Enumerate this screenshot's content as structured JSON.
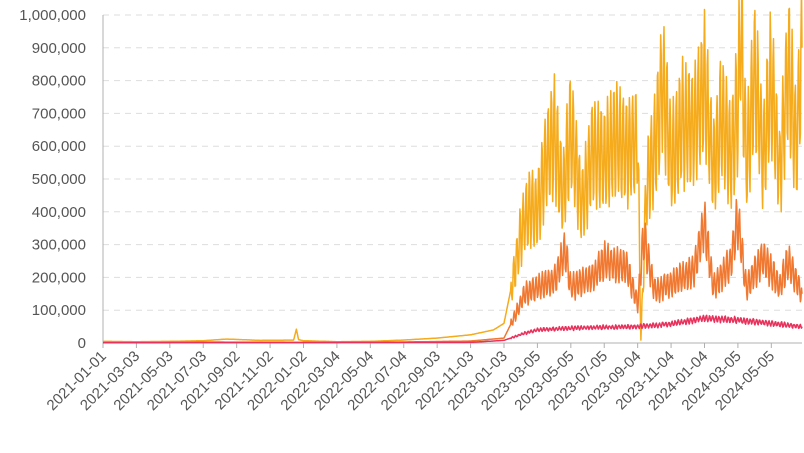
{
  "chart_data": {
    "type": "line",
    "title": "",
    "xlabel": "",
    "ylabel": "",
    "x_range": [
      "2021-01-01",
      "2024-06-30"
    ],
    "ylim": [
      0,
      1000000
    ],
    "y_ticks": [
      {
        "value": 0,
        "label": "0"
      },
      {
        "value": 100000,
        "label": "100,000"
      },
      {
        "value": 200000,
        "label": "200,000"
      },
      {
        "value": 300000,
        "label": "300,000"
      },
      {
        "value": 400000,
        "label": "400,000"
      },
      {
        "value": 500000,
        "label": "500,000"
      },
      {
        "value": 600000,
        "label": "600,000"
      },
      {
        "value": 700000,
        "label": "700,000"
      },
      {
        "value": 800000,
        "label": "800,000"
      },
      {
        "value": 900000,
        "label": "900,000"
      },
      {
        "value": 1000000,
        "label": "1,000,000"
      }
    ],
    "x_ticks": [
      "2021-01-01",
      "2021-03-03",
      "2021-05-03",
      "2021-07-03",
      "2021-09-02",
      "2021-11-02",
      "2022-01-02",
      "2022-03-04",
      "2022-05-04",
      "2022-07-04",
      "2022-09-03",
      "2022-11-03",
      "2023-01-03",
      "2023-03-05",
      "2023-05-05",
      "2023-07-05",
      "2023-09-04",
      "2023-11-04",
      "2024-01-04",
      "2024-03-05",
      "2024-05-05"
    ],
    "grid": true,
    "legend": "none",
    "series": [
      {
        "color": "#f5ab1b",
        "points": [
          [
            "2021-01-01",
            5000
          ],
          [
            "2021-03-03",
            4000
          ],
          [
            "2021-05-03",
            5000
          ],
          [
            "2021-07-03",
            7000
          ],
          [
            "2021-08-15",
            12000
          ],
          [
            "2021-10-15",
            8000
          ],
          [
            "2021-12-15",
            9000
          ],
          [
            "2021-12-20",
            42000
          ],
          [
            "2021-12-24",
            10000
          ],
          [
            "2022-01-02",
            7000
          ],
          [
            "2022-03-04",
            4000
          ],
          [
            "2022-05-04",
            5000
          ],
          [
            "2022-07-04",
            9000
          ],
          [
            "2022-09-03",
            15000
          ],
          [
            "2022-11-03",
            25000
          ],
          [
            "2022-12-15",
            40000
          ],
          [
            "2023-01-03",
            60000
          ],
          [
            "2023-01-20",
            200000
          ],
          [
            "2023-02-05",
            350000
          ],
          [
            "2023-02-20",
            420000
          ],
          [
            "2023-03-05",
            400000
          ],
          [
            "2023-03-20",
            550000
          ],
          [
            "2023-04-05",
            640000
          ],
          [
            "2023-04-20",
            450000
          ],
          [
            "2023-05-05",
            650000
          ],
          [
            "2023-05-25",
            420000
          ],
          [
            "2023-06-15",
            600000
          ],
          [
            "2023-07-05",
            550000
          ],
          [
            "2023-07-25",
            620000
          ],
          [
            "2023-08-15",
            580000
          ],
          [
            "2023-09-04",
            630000
          ],
          [
            "2023-09-10",
            10000
          ],
          [
            "2023-09-20",
            480000
          ],
          [
            "2023-10-05",
            600000
          ],
          [
            "2023-10-20",
            800000
          ],
          [
            "2023-11-04",
            550000
          ],
          [
            "2023-11-25",
            670000
          ],
          [
            "2023-12-15",
            650000
          ],
          [
            "2024-01-04",
            790000
          ],
          [
            "2024-01-20",
            520000
          ],
          [
            "2024-02-05",
            700000
          ],
          [
            "2024-02-20",
            560000
          ],
          [
            "2024-03-05",
            720000
          ],
          [
            "2024-03-10",
            970000
          ],
          [
            "2024-03-20",
            540000
          ],
          [
            "2024-04-05",
            830000
          ],
          [
            "2024-04-20",
            560000
          ],
          [
            "2024-05-05",
            800000
          ],
          [
            "2024-05-20",
            520000
          ],
          [
            "2024-06-05",
            850000
          ],
          [
            "2024-06-20",
            600000
          ],
          [
            "2024-06-30",
            900000
          ]
        ]
      },
      {
        "color": "#f07830",
        "points": [
          [
            "2021-01-01",
            2000
          ],
          [
            "2021-07-03",
            3000
          ],
          [
            "2022-01-02",
            2500
          ],
          [
            "2022-07-04",
            3000
          ],
          [
            "2022-11-03",
            6000
          ],
          [
            "2023-01-03",
            15000
          ],
          [
            "2023-01-25",
            90000
          ],
          [
            "2023-02-10",
            150000
          ],
          [
            "2023-03-05",
            170000
          ],
          [
            "2023-04-05",
            190000
          ],
          [
            "2023-04-25",
            280000
          ],
          [
            "2023-05-05",
            170000
          ],
          [
            "2023-06-15",
            200000
          ],
          [
            "2023-07-05",
            250000
          ],
          [
            "2023-08-15",
            230000
          ],
          [
            "2023-09-04",
            120000
          ],
          [
            "2023-09-15",
            320000
          ],
          [
            "2023-10-05",
            160000
          ],
          [
            "2023-11-04",
            180000
          ],
          [
            "2023-12-15",
            220000
          ],
          [
            "2024-01-04",
            360000
          ],
          [
            "2024-01-20",
            170000
          ],
          [
            "2024-02-20",
            240000
          ],
          [
            "2024-03-05",
            380000
          ],
          [
            "2024-03-20",
            170000
          ],
          [
            "2024-04-20",
            260000
          ],
          [
            "2024-05-05",
            220000
          ],
          [
            "2024-05-20",
            170000
          ],
          [
            "2024-06-05",
            250000
          ],
          [
            "2024-06-30",
            150000
          ]
        ]
      },
      {
        "color": "#e8325c",
        "points": [
          [
            "2021-01-01",
            1000
          ],
          [
            "2022-01-02",
            1200
          ],
          [
            "2022-11-03",
            2000
          ],
          [
            "2023-01-03",
            8000
          ],
          [
            "2023-02-10",
            30000
          ],
          [
            "2023-03-05",
            40000
          ],
          [
            "2023-05-05",
            45000
          ],
          [
            "2023-07-05",
            48000
          ],
          [
            "2023-09-04",
            50000
          ],
          [
            "2023-11-04",
            58000
          ],
          [
            "2024-01-04",
            75000
          ],
          [
            "2024-03-05",
            70000
          ],
          [
            "2024-05-05",
            60000
          ],
          [
            "2024-06-30",
            50000
          ]
        ]
      }
    ]
  }
}
